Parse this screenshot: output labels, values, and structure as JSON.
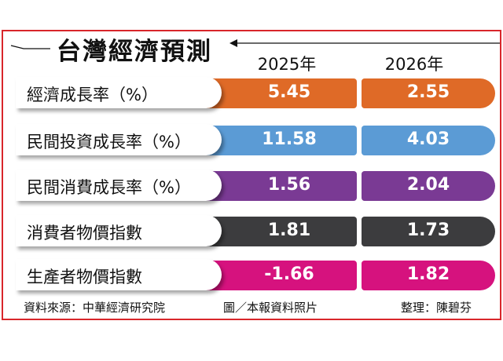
{
  "title": "台灣經濟預測",
  "columns": [
    "2025年",
    "2026年"
  ],
  "rows": [
    {
      "label": "經濟成長率（%）",
      "v2025": "5.45",
      "v2026": "2.55",
      "color": "#df6a27"
    },
    {
      "label": "民間投資成長率（%）",
      "v2025": "11.58",
      "v2026": "4.03",
      "color": "#5b9bd5"
    },
    {
      "label": "民間消費成長率（%）",
      "v2025": "1.56",
      "v2026": "2.04",
      "color": "#7a3a94"
    },
    {
      "label": "消費者物價指數",
      "v2025": "1.81",
      "v2026": "1.73",
      "color": "#3c3c3e"
    },
    {
      "label": "生產者物價指數",
      "v2025": "-1.66",
      "v2026": "1.82",
      "color": "#d6127e"
    }
  ],
  "footer": {
    "source": "資料來源：中華經濟研究院",
    "credit": "圖／本報資料照片",
    "editor": "整理：陳碧芬"
  }
}
